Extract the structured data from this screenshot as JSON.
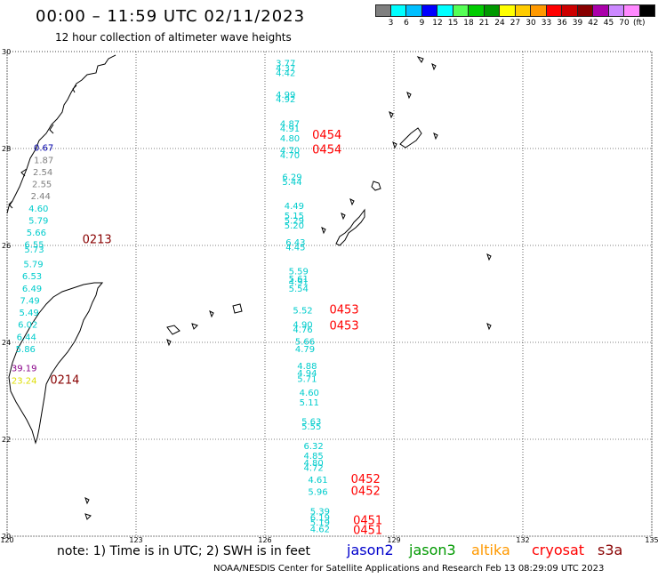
{
  "title": "00:00 – 11:59 UTC 02/11/2023",
  "subtitle": "12 hour collection of altimeter wave heights",
  "scale": {
    "colors": [
      "#7f7f7f",
      "#00ffff",
      "#00bfff",
      "#0000ff",
      "#00ffff",
      "#55ff55",
      "#00cc00",
      "#009900",
      "#ffff00",
      "#ffcc00",
      "#ff9900",
      "#ff0000",
      "#cc0000",
      "#880000",
      "#aa00aa",
      "#cc88ff",
      "#ff88ff",
      "#000000"
    ],
    "labels": [
      "3",
      "6",
      "9",
      "12",
      "15",
      "18",
      "21",
      "24",
      "27",
      "30",
      "33",
      "36",
      "39",
      "42",
      "45",
      "70"
    ],
    "unit": "(ft)"
  },
  "footer": {
    "note": "note:  1) Time is in UTC;  2) SWH is in feet",
    "satellites": [
      {
        "name": "jason2",
        "color": "#0000cc"
      },
      {
        "name": "jason3",
        "color": "#009900"
      },
      {
        "name": "altika",
        "color": "#ff9900"
      },
      {
        "name": "cryosat",
        "color": "#ff0000"
      },
      {
        "name": "s3a",
        "color": "#880000"
      }
    ],
    "credit": "NOAA/NESDIS Center for Satellite Applications and Research     Feb 13 08:29:09 UTC 2023"
  },
  "chart_data": {
    "type": "scatter",
    "xlim": [
      120,
      135
    ],
    "ylim": [
      20,
      30
    ],
    "xticks": [
      "120",
      "123",
      "126",
      "129",
      "132",
      "135"
    ],
    "yticks": [
      "20",
      "22",
      "24",
      "26",
      "28",
      "30"
    ],
    "grid": true,
    "points": [
      {
        "lon": 120.62,
        "lat": 27.95,
        "v": "0.67",
        "c": "#0000aa"
      },
      {
        "lon": 120.62,
        "lat": 27.7,
        "v": "1.87",
        "c": "#7f7f7f"
      },
      {
        "lon": 120.6,
        "lat": 27.45,
        "v": "2.54",
        "c": "#7f7f7f"
      },
      {
        "lon": 120.58,
        "lat": 27.2,
        "v": "2.55",
        "c": "#7f7f7f"
      },
      {
        "lon": 120.55,
        "lat": 26.95,
        "v": "2.44",
        "c": "#7f7f7f"
      },
      {
        "lon": 120.5,
        "lat": 26.7,
        "v": "4.60",
        "c": "#00cccc"
      },
      {
        "lon": 120.5,
        "lat": 26.45,
        "v": "5.79",
        "c": "#00cccc"
      },
      {
        "lon": 120.45,
        "lat": 26.2,
        "v": "5.66",
        "c": "#00cccc"
      },
      {
        "lon": 120.4,
        "lat": 25.95,
        "v": "6.55",
        "c": "#00cccc"
      },
      {
        "lon": 120.4,
        "lat": 25.85,
        "v": "5.73",
        "c": "#00cccc"
      },
      {
        "lon": 120.38,
        "lat": 25.55,
        "v": "5.79",
        "c": "#00cccc"
      },
      {
        "lon": 120.35,
        "lat": 25.3,
        "v": "6.53",
        "c": "#00cccc"
      },
      {
        "lon": 120.35,
        "lat": 25.05,
        "v": "6.49",
        "c": "#00cccc"
      },
      {
        "lon": 120.3,
        "lat": 24.8,
        "v": "7.49",
        "c": "#00cccc"
      },
      {
        "lon": 120.28,
        "lat": 24.55,
        "v": "5.49",
        "c": "#00cccc"
      },
      {
        "lon": 120.25,
        "lat": 24.3,
        "v": "6.02",
        "c": "#00cccc"
      },
      {
        "lon": 120.22,
        "lat": 24.05,
        "v": "6.44",
        "c": "#00cccc"
      },
      {
        "lon": 120.2,
        "lat": 23.8,
        "v": "5.86",
        "c": "#00cccc"
      },
      {
        "lon": 120.1,
        "lat": 23.4,
        "v": "39.19",
        "c": "#880088"
      },
      {
        "lon": 120.1,
        "lat": 23.15,
        "v": "23.24",
        "c": "#dddd00"
      },
      {
        "lon": 126.25,
        "lat": 29.7,
        "v": "3.77",
        "c": "#00cccc"
      },
      {
        "lon": 126.25,
        "lat": 29.6,
        "v": "4.37",
        "c": "#00cccc"
      },
      {
        "lon": 126.25,
        "lat": 29.5,
        "v": "4.42",
        "c": "#00cccc"
      },
      {
        "lon": 126.25,
        "lat": 29.05,
        "v": "4.99",
        "c": "#00cccc"
      },
      {
        "lon": 126.25,
        "lat": 28.95,
        "v": "4.92",
        "c": "#00cccc"
      },
      {
        "lon": 126.35,
        "lat": 28.45,
        "v": "4.87",
        "c": "#00cccc"
      },
      {
        "lon": 126.35,
        "lat": 28.35,
        "v": "4.91",
        "c": "#00cccc"
      },
      {
        "lon": 126.35,
        "lat": 28.15,
        "v": "4.80",
        "c": "#00cccc"
      },
      {
        "lon": 126.35,
        "lat": 27.9,
        "v": "4.70",
        "c": "#00cccc"
      },
      {
        "lon": 126.35,
        "lat": 27.8,
        "v": "4.70",
        "c": "#00cccc"
      },
      {
        "lon": 126.4,
        "lat": 27.35,
        "v": "6.29",
        "c": "#00cccc"
      },
      {
        "lon": 126.4,
        "lat": 27.25,
        "v": "5.44",
        "c": "#00cccc"
      },
      {
        "lon": 126.45,
        "lat": 26.75,
        "v": "4.49",
        "c": "#00cccc"
      },
      {
        "lon": 126.45,
        "lat": 26.55,
        "v": "5.15",
        "c": "#00cccc"
      },
      {
        "lon": 126.45,
        "lat": 26.45,
        "v": "5.29",
        "c": "#00cccc"
      },
      {
        "lon": 126.45,
        "lat": 26.35,
        "v": "5.20",
        "c": "#00cccc"
      },
      {
        "lon": 126.48,
        "lat": 26.0,
        "v": "6.43",
        "c": "#00cccc"
      },
      {
        "lon": 126.48,
        "lat": 25.9,
        "v": "4.45",
        "c": "#00cccc"
      },
      {
        "lon": 126.55,
        "lat": 25.4,
        "v": "5.59",
        "c": "#00cccc"
      },
      {
        "lon": 126.55,
        "lat": 25.25,
        "v": "5.61",
        "c": "#00cccc"
      },
      {
        "lon": 126.55,
        "lat": 25.18,
        "v": "4.91",
        "c": "#00cccc"
      },
      {
        "lon": 126.55,
        "lat": 25.05,
        "v": "5.54",
        "c": "#00cccc"
      },
      {
        "lon": 126.65,
        "lat": 24.6,
        "v": "5.52",
        "c": "#00cccc"
      },
      {
        "lon": 126.65,
        "lat": 24.3,
        "v": "4.90",
        "c": "#00cccc"
      },
      {
        "lon": 126.65,
        "lat": 24.2,
        "v": "4.76",
        "c": "#00cccc"
      },
      {
        "lon": 126.7,
        "lat": 23.95,
        "v": "5.66",
        "c": "#00cccc"
      },
      {
        "lon": 126.7,
        "lat": 23.8,
        "v": "4.79",
        "c": "#00cccc"
      },
      {
        "lon": 126.75,
        "lat": 23.45,
        "v": "4.88",
        "c": "#00cccc"
      },
      {
        "lon": 126.75,
        "lat": 23.3,
        "v": "4.94",
        "c": "#00cccc"
      },
      {
        "lon": 126.75,
        "lat": 23.18,
        "v": "5.71",
        "c": "#00cccc"
      },
      {
        "lon": 126.8,
        "lat": 22.9,
        "v": "4.60",
        "c": "#00cccc"
      },
      {
        "lon": 126.8,
        "lat": 22.7,
        "v": "5.11",
        "c": "#00cccc"
      },
      {
        "lon": 126.85,
        "lat": 22.3,
        "v": "5.63",
        "c": "#00cccc"
      },
      {
        "lon": 126.85,
        "lat": 22.2,
        "v": "5.55",
        "c": "#00cccc"
      },
      {
        "lon": 126.9,
        "lat": 21.8,
        "v": "6.32",
        "c": "#00cccc"
      },
      {
        "lon": 126.9,
        "lat": 21.6,
        "v": "4.85",
        "c": "#00cccc"
      },
      {
        "lon": 126.9,
        "lat": 21.45,
        "v": "4.80",
        "c": "#00cccc"
      },
      {
        "lon": 126.9,
        "lat": 21.35,
        "v": "4.72",
        "c": "#00cccc"
      },
      {
        "lon": 127.0,
        "lat": 21.1,
        "v": "4.61",
        "c": "#00cccc"
      },
      {
        "lon": 127.0,
        "lat": 20.85,
        "v": "5.96",
        "c": "#00cccc"
      },
      {
        "lon": 127.05,
        "lat": 20.45,
        "v": "5.39",
        "c": "#00cccc"
      },
      {
        "lon": 127.05,
        "lat": 20.32,
        "v": "6.19",
        "c": "#00cccc"
      },
      {
        "lon": 127.05,
        "lat": 20.22,
        "v": "5.19",
        "c": "#00cccc"
      },
      {
        "lon": 127.05,
        "lat": 20.08,
        "v": "4.62",
        "c": "#00cccc"
      }
    ],
    "passes": [
      {
        "lon": 121.75,
        "lat": 26.05,
        "label": "0213",
        "c": "#880000"
      },
      {
        "lon": 121.0,
        "lat": 23.15,
        "label": "0214",
        "c": "#880000"
      },
      {
        "lon": 127.1,
        "lat": 28.2,
        "label": "0454",
        "c": "#ff0000"
      },
      {
        "lon": 127.1,
        "lat": 27.9,
        "label": "0454",
        "c": "#ff0000"
      },
      {
        "lon": 127.5,
        "lat": 24.6,
        "label": "0453",
        "c": "#ff0000"
      },
      {
        "lon": 127.5,
        "lat": 24.27,
        "label": "0453",
        "c": "#ff0000"
      },
      {
        "lon": 128.0,
        "lat": 21.1,
        "label": "0452",
        "c": "#ff0000"
      },
      {
        "lon": 128.0,
        "lat": 20.85,
        "label": "0452",
        "c": "#ff0000"
      },
      {
        "lon": 128.05,
        "lat": 20.25,
        "label": "0451",
        "c": "#ff0000"
      },
      {
        "lon": 128.05,
        "lat": 20.05,
        "label": "0451",
        "c": "#ff0000"
      }
    ]
  }
}
